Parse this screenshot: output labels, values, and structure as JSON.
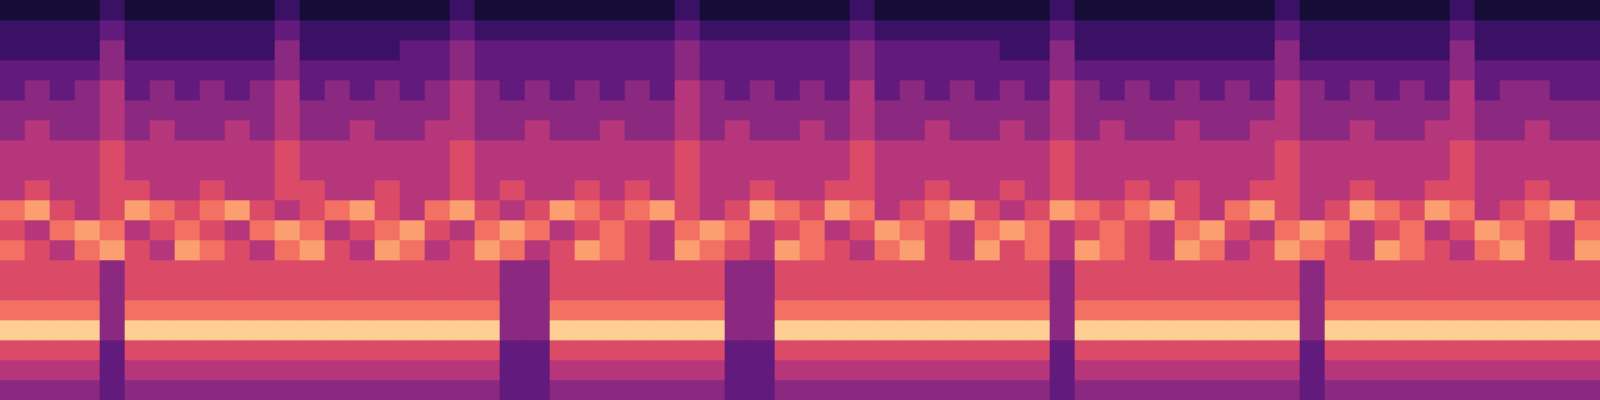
{
  "chart_data": {
    "type": "heatmap",
    "tick_labels": false,
    "color": "magma",
    "zlim": [
      0,
      10
    ],
    "rows": [
      [
        1,
        1,
        1,
        1,
        2,
        1,
        1,
        1,
        1,
        1,
        1,
        2,
        1,
        1,
        1,
        1,
        1,
        1,
        2,
        1,
        1,
        1,
        1,
        1,
        1,
        1,
        1,
        2,
        1,
        1,
        1,
        1,
        1,
        1,
        2,
        1,
        1,
        1,
        1,
        1,
        1,
        1,
        2,
        1,
        1,
        1,
        1,
        1,
        1,
        1,
        1,
        2,
        1,
        1,
        1,
        1,
        1,
        1,
        2,
        1,
        1,
        1,
        1,
        1
      ],
      [
        2,
        2,
        2,
        2,
        3,
        2,
        2,
        2,
        2,
        2,
        2,
        3,
        2,
        2,
        2,
        2,
        2,
        2,
        3,
        2,
        2,
        2,
        2,
        2,
        2,
        2,
        2,
        3,
        2,
        2,
        2,
        2,
        2,
        2,
        3,
        2,
        2,
        2,
        2,
        2,
        2,
        2,
        3,
        2,
        2,
        2,
        2,
        2,
        2,
        2,
        2,
        3,
        2,
        2,
        2,
        2,
        2,
        2,
        3,
        2,
        2,
        2,
        2,
        2
      ],
      [
        2,
        2,
        2,
        2,
        4,
        2,
        2,
        2,
        2,
        2,
        2,
        4,
        2,
        2,
        2,
        2,
        3,
        3,
        4,
        3,
        3,
        3,
        3,
        3,
        3,
        3,
        3,
        4,
        3,
        3,
        3,
        3,
        3,
        3,
        4,
        3,
        3,
        3,
        3,
        3,
        2,
        2,
        4,
        2,
        2,
        2,
        2,
        2,
        2,
        2,
        2,
        4,
        2,
        2,
        2,
        2,
        2,
        2,
        4,
        2,
        2,
        2,
        2,
        2
      ],
      [
        3,
        3,
        3,
        3,
        4,
        3,
        3,
        3,
        3,
        3,
        3,
        4,
        3,
        3,
        3,
        3,
        3,
        3,
        4,
        3,
        3,
        3,
        3,
        3,
        3,
        3,
        3,
        4,
        3,
        3,
        3,
        3,
        3,
        3,
        4,
        3,
        3,
        3,
        3,
        3,
        3,
        3,
        4,
        3,
        3,
        3,
        3,
        3,
        3,
        3,
        3,
        4,
        3,
        3,
        3,
        3,
        3,
        3,
        4,
        3,
        3,
        3,
        3,
        3
      ],
      [
        3,
        4,
        3,
        4,
        5,
        3,
        4,
        3,
        4,
        3,
        4,
        5,
        3,
        4,
        3,
        4,
        3,
        4,
        5,
        4,
        3,
        4,
        3,
        4,
        3,
        4,
        3,
        5,
        4,
        3,
        4,
        3,
        4,
        3,
        5,
        3,
        4,
        3,
        4,
        3,
        4,
        3,
        5,
        4,
        3,
        4,
        3,
        4,
        3,
        4,
        3,
        5,
        4,
        3,
        4,
        3,
        4,
        3,
        5,
        3,
        4,
        4,
        3,
        3
      ],
      [
        4,
        4,
        4,
        4,
        5,
        4,
        4,
        4,
        4,
        4,
        4,
        5,
        4,
        4,
        4,
        4,
        4,
        4,
        5,
        4,
        4,
        4,
        4,
        4,
        4,
        4,
        4,
        5,
        4,
        4,
        4,
        4,
        4,
        4,
        5,
        4,
        4,
        4,
        4,
        4,
        4,
        4,
        5,
        4,
        4,
        4,
        4,
        4,
        4,
        4,
        4,
        5,
        4,
        4,
        4,
        4,
        4,
        4,
        5,
        4,
        4,
        4,
        4,
        4
      ],
      [
        4,
        5,
        4,
        4,
        5,
        4,
        5,
        4,
        4,
        5,
        4,
        5,
        4,
        4,
        5,
        4,
        4,
        5,
        5,
        4,
        4,
        5,
        4,
        4,
        5,
        4,
        4,
        5,
        4,
        5,
        4,
        4,
        5,
        4,
        5,
        4,
        4,
        5,
        4,
        4,
        5,
        4,
        5,
        4,
        5,
        4,
        4,
        5,
        4,
        4,
        5,
        5,
        4,
        4,
        5,
        4,
        4,
        5,
        5,
        4,
        4,
        5,
        4,
        4
      ],
      [
        5,
        5,
        5,
        5,
        6,
        5,
        5,
        5,
        5,
        5,
        5,
        6,
        5,
        5,
        5,
        5,
        5,
        5,
        6,
        5,
        5,
        5,
        5,
        5,
        5,
        5,
        5,
        6,
        5,
        5,
        5,
        5,
        5,
        5,
        6,
        5,
        5,
        5,
        5,
        5,
        5,
        5,
        6,
        5,
        5,
        5,
        5,
        5,
        5,
        5,
        5,
        6,
        5,
        5,
        5,
        5,
        5,
        5,
        6,
        5,
        5,
        5,
        5,
        5
      ],
      [
        5,
        5,
        5,
        5,
        6,
        5,
        5,
        5,
        5,
        5,
        5,
        6,
        5,
        5,
        5,
        5,
        5,
        5,
        6,
        5,
        5,
        5,
        5,
        5,
        5,
        5,
        5,
        6,
        5,
        5,
        5,
        5,
        5,
        5,
        6,
        5,
        5,
        5,
        5,
        5,
        5,
        5,
        6,
        5,
        5,
        5,
        5,
        5,
        5,
        5,
        5,
        6,
        5,
        5,
        5,
        5,
        5,
        5,
        6,
        5,
        5,
        5,
        5,
        5
      ],
      [
        5,
        6,
        5,
        5,
        6,
        6,
        5,
        5,
        6,
        5,
        5,
        6,
        6,
        5,
        5,
        6,
        5,
        5,
        6,
        5,
        6,
        5,
        5,
        6,
        5,
        6,
        5,
        6,
        5,
        5,
        6,
        5,
        5,
        6,
        6,
        5,
        5,
        6,
        5,
        5,
        6,
        5,
        6,
        5,
        5,
        6,
        5,
        6,
        5,
        5,
        6,
        6,
        5,
        5,
        6,
        5,
        5,
        6,
        6,
        5,
        5,
        6,
        5,
        5
      ],
      [
        7,
        8,
        6,
        5,
        6,
        8,
        7,
        6,
        7,
        8,
        6,
        5,
        6,
        7,
        8,
        6,
        5,
        7,
        8,
        6,
        5,
        6,
        8,
        7,
        6,
        7,
        8,
        6,
        5,
        6,
        8,
        7,
        6,
        8,
        7,
        5,
        6,
        7,
        8,
        6,
        5,
        6,
        8,
        7,
        6,
        7,
        8,
        6,
        5,
        7,
        8,
        6,
        5,
        6,
        8,
        7,
        6,
        8,
        7,
        5,
        6,
        7,
        8,
        6
      ],
      [
        6,
        5,
        7,
        8,
        7,
        5,
        6,
        7,
        6,
        5,
        7,
        8,
        7,
        5,
        6,
        7,
        8,
        6,
        5,
        7,
        8,
        7,
        5,
        6,
        7,
        6,
        5,
        7,
        8,
        7,
        5,
        6,
        7,
        5,
        6,
        8,
        7,
        6,
        5,
        7,
        8,
        7,
        5,
        6,
        7,
        6,
        5,
        7,
        8,
        6,
        5,
        7,
        8,
        7,
        5,
        6,
        7,
        5,
        6,
        8,
        7,
        6,
        5,
        7
      ],
      [
        7,
        6,
        5,
        7,
        8,
        6,
        5,
        8,
        7,
        6,
        5,
        7,
        8,
        6,
        5,
        8,
        7,
        5,
        6,
        8,
        7,
        5,
        6,
        8,
        7,
        6,
        5,
        8,
        7,
        6,
        5,
        8,
        7,
        6,
        5,
        7,
        8,
        6,
        5,
        8,
        6,
        7,
        5,
        8,
        7,
        6,
        5,
        8,
        7,
        5,
        6,
        8,
        7,
        6,
        5,
        8,
        7,
        6,
        5,
        7,
        8,
        6,
        5,
        8
      ],
      [
        6,
        6,
        6,
        6,
        4,
        6,
        6,
        6,
        6,
        6,
        6,
        6,
        6,
        6,
        6,
        6,
        6,
        6,
        6,
        6,
        4,
        4,
        6,
        6,
        6,
        6,
        6,
        6,
        6,
        4,
        4,
        6,
        6,
        6,
        6,
        6,
        6,
        6,
        6,
        6,
        6,
        6,
        4,
        6,
        6,
        6,
        6,
        6,
        6,
        6,
        6,
        6,
        4,
        6,
        6,
        6,
        6,
        6,
        6,
        6,
        6,
        6,
        6,
        6
      ],
      [
        6,
        6,
        6,
        6,
        4,
        6,
        6,
        6,
        6,
        6,
        6,
        6,
        6,
        6,
        6,
        6,
        6,
        6,
        6,
        6,
        4,
        4,
        6,
        6,
        6,
        6,
        6,
        6,
        6,
        4,
        4,
        6,
        6,
        6,
        6,
        6,
        6,
        6,
        6,
        6,
        6,
        6,
        4,
        6,
        6,
        6,
        6,
        6,
        6,
        6,
        6,
        6,
        4,
        6,
        6,
        6,
        6,
        6,
        6,
        6,
        6,
        6,
        6,
        6
      ],
      [
        7,
        7,
        7,
        7,
        4,
        7,
        7,
        7,
        7,
        7,
        7,
        7,
        7,
        7,
        7,
        7,
        7,
        7,
        7,
        7,
        4,
        4,
        7,
        7,
        7,
        7,
        7,
        7,
        7,
        4,
        4,
        7,
        7,
        7,
        7,
        7,
        7,
        7,
        7,
        7,
        7,
        7,
        4,
        7,
        7,
        7,
        7,
        7,
        7,
        7,
        7,
        7,
        4,
        7,
        7,
        7,
        7,
        7,
        7,
        7,
        7,
        7,
        7,
        7
      ],
      [
        9,
        9,
        9,
        9,
        4,
        9,
        9,
        9,
        9,
        9,
        9,
        9,
        9,
        9,
        9,
        9,
        9,
        9,
        9,
        9,
        4,
        4,
        9,
        9,
        9,
        9,
        9,
        9,
        9,
        4,
        4,
        9,
        9,
        9,
        9,
        9,
        9,
        9,
        9,
        9,
        9,
        9,
        4,
        9,
        9,
        9,
        9,
        9,
        9,
        9,
        9,
        9,
        4,
        9,
        9,
        9,
        9,
        9,
        9,
        9,
        9,
        9,
        9,
        9
      ],
      [
        6,
        6,
        6,
        6,
        3,
        6,
        6,
        6,
        6,
        6,
        6,
        6,
        6,
        6,
        6,
        6,
        6,
        6,
        6,
        6,
        3,
        3,
        6,
        6,
        6,
        6,
        6,
        6,
        6,
        3,
        3,
        6,
        6,
        6,
        6,
        6,
        6,
        6,
        6,
        6,
        6,
        6,
        3,
        6,
        6,
        6,
        6,
        6,
        6,
        6,
        6,
        6,
        3,
        6,
        6,
        6,
        6,
        6,
        6,
        6,
        6,
        6,
        6,
        6
      ],
      [
        5,
        5,
        5,
        5,
        3,
        5,
        5,
        5,
        5,
        5,
        5,
        5,
        5,
        5,
        5,
        5,
        5,
        5,
        5,
        5,
        3,
        3,
        5,
        5,
        5,
        5,
        5,
        5,
        5,
        3,
        3,
        5,
        5,
        5,
        5,
        5,
        5,
        5,
        5,
        5,
        5,
        5,
        3,
        5,
        5,
        5,
        5,
        5,
        5,
        5,
        5,
        5,
        3,
        5,
        5,
        5,
        5,
        5,
        5,
        5,
        5,
        5,
        5,
        5
      ],
      [
        4,
        4,
        4,
        4,
        3,
        4,
        4,
        4,
        4,
        4,
        4,
        4,
        4,
        4,
        4,
        4,
        4,
        4,
        4,
        4,
        3,
        3,
        4,
        4,
        4,
        4,
        4,
        4,
        4,
        3,
        3,
        4,
        4,
        4,
        4,
        4,
        4,
        4,
        4,
        4,
        4,
        4,
        3,
        4,
        4,
        4,
        4,
        4,
        4,
        4,
        4,
        4,
        3,
        4,
        4,
        4,
        4,
        4,
        4,
        4,
        4,
        4,
        4,
        4
      ]
    ]
  }
}
